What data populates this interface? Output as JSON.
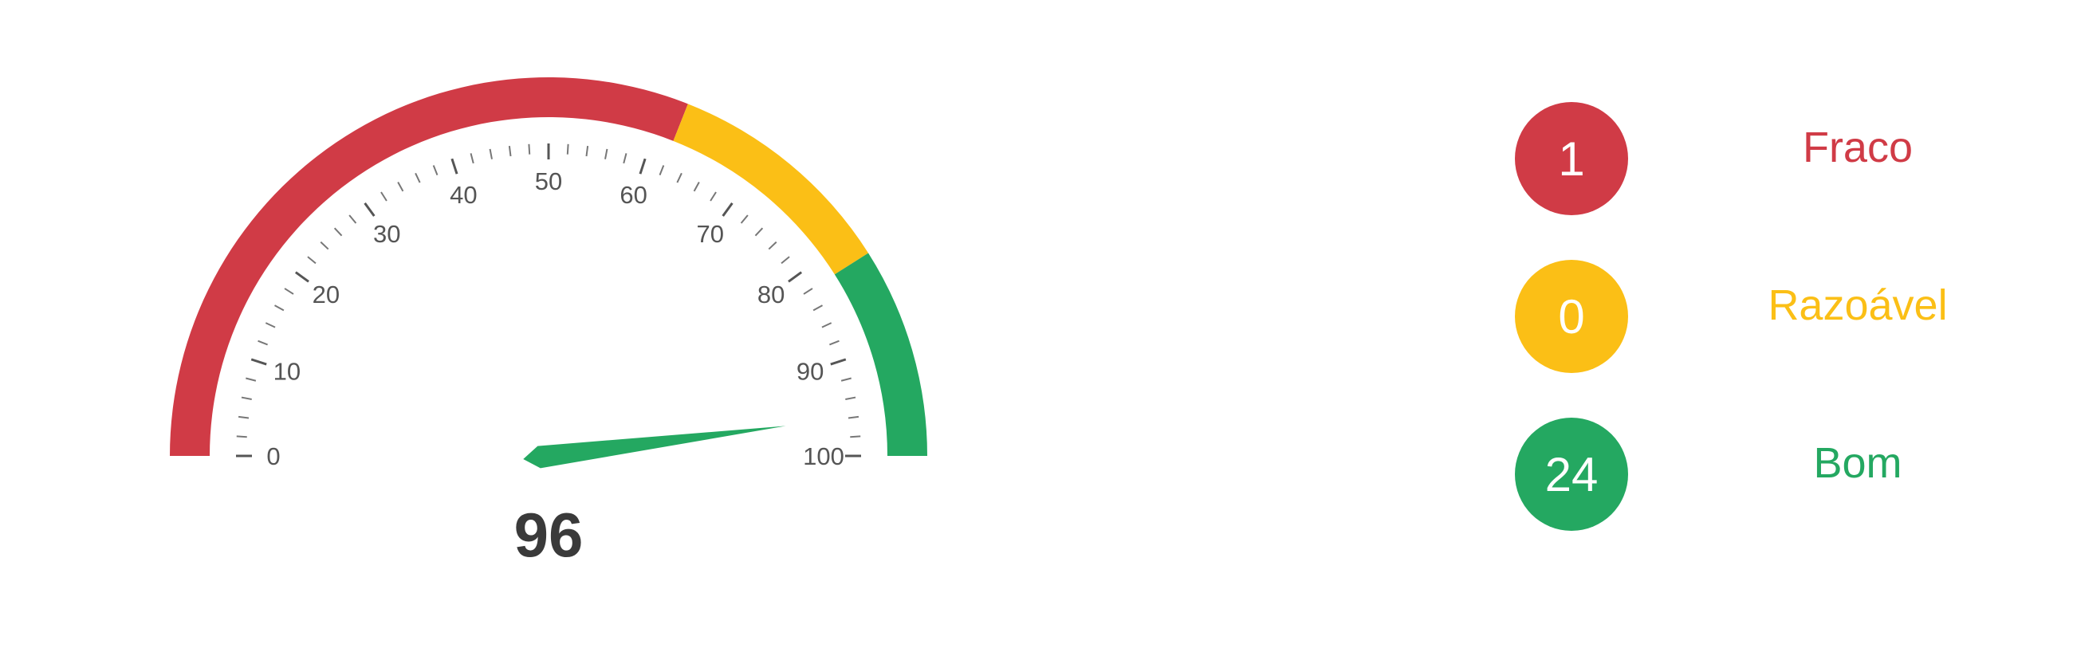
{
  "chart_data": {
    "type": "gauge",
    "value": 96,
    "display_value": "96",
    "min": 0,
    "max": 100,
    "tick_labels": [
      "0",
      "10",
      "20",
      "30",
      "40",
      "50",
      "60",
      "70",
      "80",
      "90",
      "100"
    ],
    "bands": [
      {
        "from": 0,
        "to": 62,
        "color": "#d03b46"
      },
      {
        "from": 62,
        "to": 82,
        "color": "#fbbf16"
      },
      {
        "from": 82,
        "to": 100,
        "color": "#24a861"
      }
    ],
    "needle_color": "#24a861",
    "legend": [
      {
        "count": "1",
        "label": "Fraco",
        "color": "#d03b46"
      },
      {
        "count": "0",
        "label": "Razoável",
        "color": "#fbbf16"
      },
      {
        "count": "24",
        "label": "Bom",
        "color": "#24a861"
      }
    ]
  }
}
